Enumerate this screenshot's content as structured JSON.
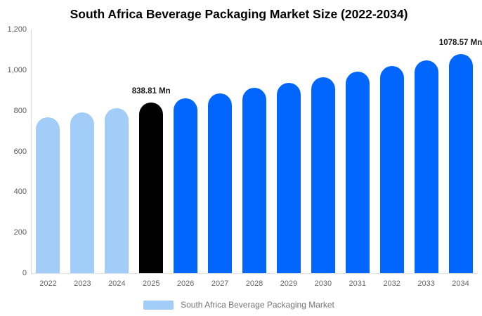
{
  "title": "South Africa Beverage Packaging Market Size (2022-2034)",
  "legend": {
    "label": "South Africa Beverage Packaging Market",
    "swatch_color": "#A3CDF9"
  },
  "colors": {
    "historical": "#A3CDF9",
    "highlight": "#000000",
    "forecast": "#0066FE",
    "axis_line": "#d9d9d9",
    "baseline": "#e2e2e2",
    "tick_text": "#5c5c5c",
    "data_label_text": "#1a1a1a"
  },
  "chart_data": {
    "type": "bar",
    "title": "South Africa Beverage Packaging Market Size (2022-2034)",
    "categories": [
      "2022",
      "2023",
      "2024",
      "2025",
      "2026",
      "2027",
      "2028",
      "2029",
      "2030",
      "2031",
      "2032",
      "2033",
      "2034"
    ],
    "values": [
      766,
      791,
      812,
      838.81,
      862.5,
      887,
      912,
      938,
      964.5,
      991.5,
      1019.5,
      1048.5,
      1078.57
    ],
    "bar_roles": [
      "historical",
      "historical",
      "historical",
      "highlight",
      "forecast",
      "forecast",
      "forecast",
      "forecast",
      "forecast",
      "forecast",
      "forecast",
      "forecast",
      "forecast"
    ],
    "data_labels": [
      {
        "index": 3,
        "text": "838.81 Mn"
      },
      {
        "index": 12,
        "text": "1078.57 Mn"
      }
    ],
    "xlabel": "",
    "ylabel": "",
    "ylim": [
      0,
      1200
    ],
    "yticks": {
      "values": [
        0,
        200,
        400,
        600,
        800,
        1000,
        1200
      ],
      "labels": [
        "0",
        "200",
        "400",
        "600",
        "800",
        "1,000",
        "1,200"
      ]
    },
    "grid": false,
    "legend_position": "bottom",
    "series_name": "South Africa Beverage Packaging Market",
    "unit": "Mn"
  }
}
